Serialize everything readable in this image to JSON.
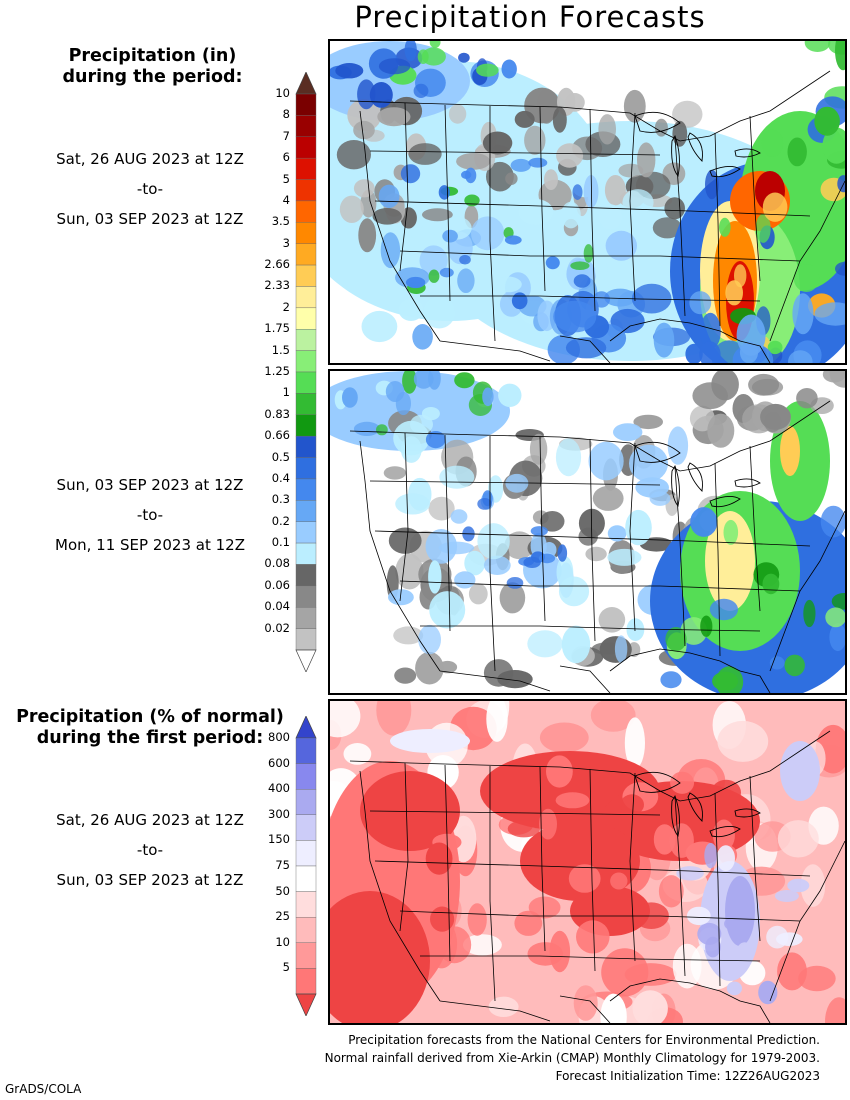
{
  "title": "Precipitation Forecasts",
  "precip_legend": {
    "heading_lines": [
      "Precipitation (in)",
      "during the period:"
    ],
    "ticks": [
      "10",
      "8",
      "7",
      "6",
      "5",
      "4",
      "3.5",
      "3",
      "2.66",
      "2.33",
      "2",
      "1.75",
      "1.5",
      "1.25",
      "1",
      "0.83",
      "0.66",
      "0.5",
      "0.4",
      "0.3",
      "0.2",
      "0.1",
      "0.08",
      "0.06",
      "0.04",
      "0.02"
    ],
    "colors": [
      "#5a2d22",
      "#7a0000",
      "#990000",
      "#bb0000",
      "#dd1100",
      "#ee3300",
      "#ff6600",
      "#ff8800",
      "#ffaa22",
      "#ffcc55",
      "#ffee99",
      "#ffffaa",
      "#bbf2a0",
      "#88ee77",
      "#55dd55",
      "#33bb33",
      "#119911",
      "#2255cc",
      "#2f6fe0",
      "#4488ee",
      "#66a8f5",
      "#99ccff",
      "#bbeeff",
      "#666666",
      "#888888",
      "#a5a5a5",
      "#c2c2c2",
      "#ffffff"
    ]
  },
  "period1": {
    "start": "Sat, 26 AUG 2023 at 12Z",
    "sep": "-to-",
    "end": "Sun, 03 SEP 2023 at 12Z"
  },
  "period2": {
    "start": "Sun, 03 SEP 2023 at 12Z",
    "sep": "-to-",
    "end": "Mon, 11 SEP 2023 at 12Z"
  },
  "normal_legend": {
    "heading_lines": [
      "Precipitation (% of normal)",
      "during the first period:"
    ],
    "ticks": [
      "800",
      "600",
      "400",
      "300",
      "150",
      "75",
      "50",
      "25",
      "10",
      "5"
    ],
    "colors": [
      "#3344cc",
      "#5566dd",
      "#8888ee",
      "#aaaaf0",
      "#ccccf8",
      "#eeeeff",
      "#ffffff",
      "#ffdddd",
      "#ffbbbb",
      "#ff9999",
      "#ff7777",
      "#ee4444"
    ]
  },
  "period3": {
    "start": "Sat, 26 AUG 2023 at 12Z",
    "sep": "-to-",
    "end": "Sun, 03 SEP 2023 at 12Z"
  },
  "footer": {
    "line1": "Precipitation forecasts from the National Centers for Environmental Prediction.",
    "line2": "Normal rainfall derived from Xie-Arkin (CMAP) Monthly Climatology for 1979-2003.",
    "line3": "Forecast Initialization Time: 12Z26AUG2023"
  },
  "credit": "GrADS/COLA"
}
